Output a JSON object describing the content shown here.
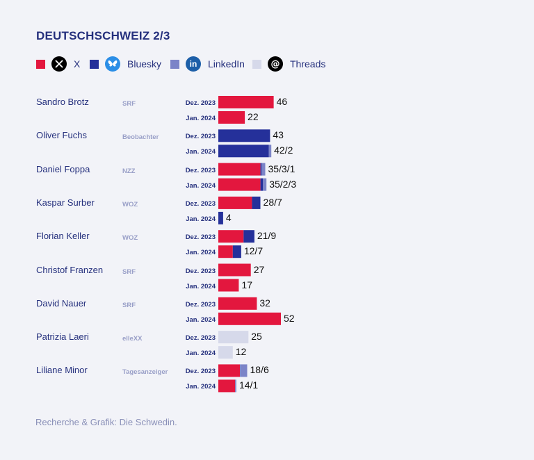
{
  "title": "DEUTSCHSCHWEIZ 2/3",
  "legend": [
    {
      "label": "X",
      "color": "#e3173e",
      "icon": "x-logo-icon"
    },
    {
      "label": "Bluesky",
      "color": "#25309a",
      "icon": "bluesky-butterfly-icon"
    },
    {
      "label": "LinkedIn",
      "color": "#7b84c8",
      "icon": "linkedin-icon"
    },
    {
      "label": "Threads",
      "color": "#d6d9ea",
      "icon": "threads-icon"
    }
  ],
  "source": "Recherche & Grafik: Die Schwedin.",
  "chart_data": {
    "type": "bar",
    "orientation": "horizontal",
    "stacked": true,
    "series_order": [
      "X",
      "Bluesky",
      "LinkedIn",
      "Threads"
    ],
    "colors": {
      "X": "#e3173e",
      "Bluesky": "#25309a",
      "LinkedIn": "#7b84c8",
      "Threads": "#d6d9ea"
    },
    "people": [
      {
        "name": "Sandro Brotz",
        "outlet": "SRF",
        "rows": [
          {
            "period": "Dez. 2023",
            "label": "46",
            "values": {
              "X": 46
            }
          },
          {
            "period": "Jan. 2024",
            "label": "22",
            "values": {
              "X": 22
            }
          }
        ]
      },
      {
        "name": "Oliver Fuchs",
        "outlet": "Beobachter",
        "rows": [
          {
            "period": "Dez. 2023",
            "label": "43",
            "values": {
              "Bluesky": 43
            }
          },
          {
            "period": "Jan. 2024",
            "label": "42/2",
            "values": {
              "Bluesky": 42,
              "LinkedIn": 2
            }
          }
        ]
      },
      {
        "name": "Daniel Foppa",
        "outlet": "NZZ",
        "rows": [
          {
            "period": "Dez. 2023",
            "label": "35/3/1",
            "values": {
              "X": 35,
              "LinkedIn": 3,
              "Bluesky": 1
            }
          },
          {
            "period": "Jan. 2024",
            "label": "35/2/3",
            "values": {
              "X": 35,
              "Bluesky": 2,
              "LinkedIn": 3
            }
          }
        ]
      },
      {
        "name": "Kaspar Surber",
        "outlet": "WOZ",
        "rows": [
          {
            "period": "Dez. 2023",
            "label": "28/7",
            "values": {
              "X": 28,
              "Bluesky": 7
            }
          },
          {
            "period": "Jan. 2024",
            "label": "4",
            "values": {
              "Bluesky": 4
            }
          }
        ]
      },
      {
        "name": "Florian Keller",
        "outlet": "WOZ",
        "rows": [
          {
            "period": "Dez. 2023",
            "label": "21/9",
            "values": {
              "X": 21,
              "Bluesky": 9
            }
          },
          {
            "period": "Jan. 2024",
            "label": "12/7",
            "values": {
              "X": 12,
              "Bluesky": 7
            }
          }
        ]
      },
      {
        "name": "Christof Franzen",
        "outlet": "SRF",
        "rows": [
          {
            "period": "Dez. 2023",
            "label": "27",
            "values": {
              "X": 27
            }
          },
          {
            "period": "Jan. 2024",
            "label": "17",
            "values": {
              "X": 17
            }
          }
        ]
      },
      {
        "name": "David Nauer",
        "outlet": "SRF",
        "rows": [
          {
            "period": "Dez. 2023",
            "label": "32",
            "values": {
              "X": 32
            }
          },
          {
            "period": "Jan. 2024",
            "label": "52",
            "values": {
              "X": 52
            }
          }
        ]
      },
      {
        "name": "Patrizia Laeri",
        "outlet": "elleXX",
        "rows": [
          {
            "period": "Dez. 2023",
            "label": "25",
            "values": {
              "Threads": 25
            }
          },
          {
            "period": "Jan. 2024",
            "label": "12",
            "values": {
              "Threads": 12
            }
          }
        ]
      },
      {
        "name": "Liliane Minor",
        "outlet": "Tagesanzeiger",
        "rows": [
          {
            "period": "Dez. 2023",
            "label": "18/6",
            "values": {
              "X": 18,
              "LinkedIn": 6
            }
          },
          {
            "period": "Jan. 2024",
            "label": "14/1",
            "values": {
              "X": 14,
              "LinkedIn": 1
            }
          }
        ]
      }
    ]
  }
}
